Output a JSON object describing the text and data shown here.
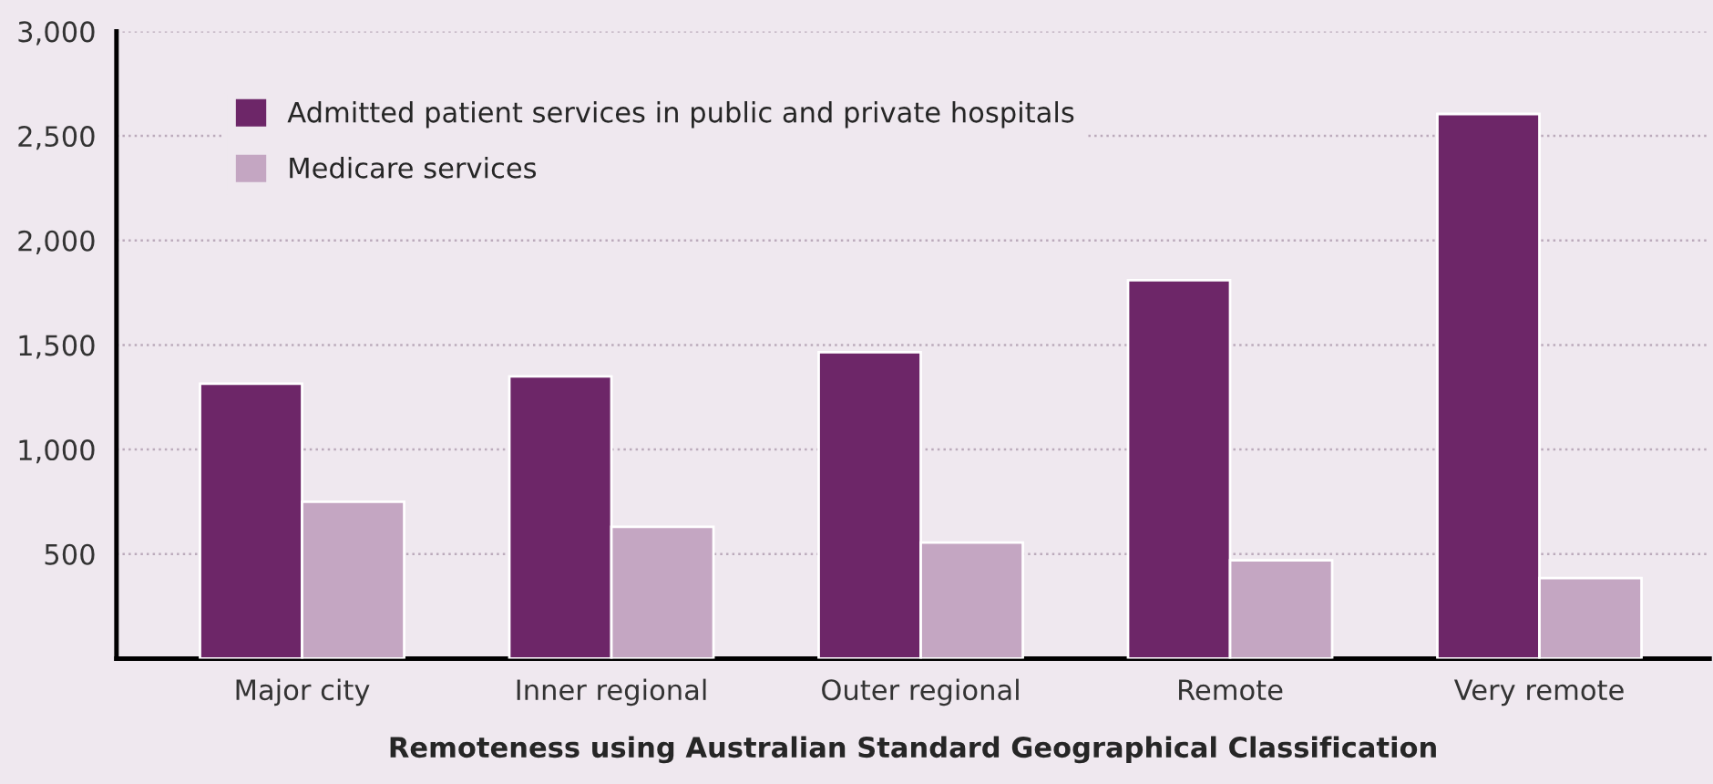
{
  "chart_data": {
    "type": "bar",
    "xlabel": "Remoteness using Australian Standard Geographical Classification",
    "categories": [
      "Major city",
      "Inner regional",
      "Outer regional",
      "Remote",
      "Very remote"
    ],
    "series": [
      {
        "name": "Admitted patient services in public and private hospitals",
        "color": "#6d2668",
        "values": [
          1315,
          1350,
          1465,
          1810,
          2605
        ]
      },
      {
        "name": "Medicare services",
        "color": "#c4a6c2",
        "values": [
          750,
          630,
          555,
          470,
          385
        ]
      }
    ],
    "ylim": [
      0,
      3000
    ],
    "yticks": [
      {
        "value": 500,
        "label": "500"
      },
      {
        "value": 1000,
        "label": "1,000"
      },
      {
        "value": 1500,
        "label": "1,500"
      },
      {
        "value": 2000,
        "label": "2,000"
      },
      {
        "value": 2500,
        "label": "2,500"
      },
      {
        "value": 3000,
        "label": "3,000"
      }
    ],
    "grid": "y",
    "legend": "top left"
  }
}
